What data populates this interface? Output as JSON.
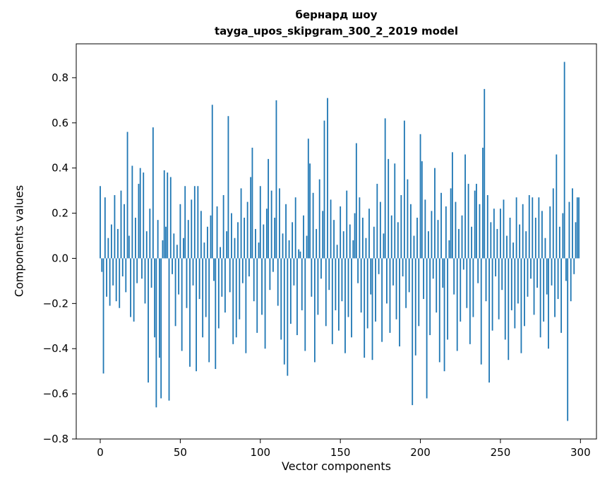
{
  "chart_data": {
    "type": "bar",
    "title_line1": "бернард шоу",
    "title_line2": "tayga_upos_skipgram_300_2_2019 model",
    "xlabel": "Vector components",
    "ylabel": "Components values",
    "bar_color": "#1f77b4",
    "axis_color": "#000000",
    "xlim": [
      -15,
      310
    ],
    "ylim": [
      -0.8,
      0.95
    ],
    "x_start": 0,
    "x_ticks": [
      0,
      50,
      100,
      150,
      200,
      250,
      300
    ],
    "x_tick_labels": [
      "0",
      "50",
      "100",
      "150",
      "200",
      "250",
      "300"
    ],
    "y_ticks": [
      -0.8,
      -0.6,
      -0.4,
      -0.2,
      0.0,
      0.2,
      0.4,
      0.6,
      0.8
    ],
    "y_tick_labels": [
      "−0.8",
      "−0.6",
      "−0.4",
      "−0.2",
      "0.0",
      "0.2",
      "0.4",
      "0.6",
      "0.8"
    ],
    "values": [
      0.32,
      -0.06,
      -0.51,
      0.27,
      -0.17,
      0.09,
      -0.21,
      0.15,
      -0.12,
      0.28,
      -0.19,
      0.13,
      -0.22,
      0.3,
      -0.08,
      0.24,
      -0.15,
      0.56,
      0.1,
      -0.26,
      0.41,
      -0.28,
      0.18,
      -0.11,
      0.33,
      0.4,
      -0.09,
      0.38,
      -0.2,
      0.12,
      -0.55,
      0.22,
      -0.13,
      0.58,
      -0.35,
      -0.66,
      0.17,
      -0.44,
      -0.62,
      0.08,
      0.39,
      0.14,
      0.38,
      -0.63,
      0.36,
      -0.07,
      0.11,
      -0.3,
      0.06,
      -0.16,
      0.24,
      -0.41,
      0.09,
      0.32,
      -0.22,
      0.17,
      -0.48,
      0.26,
      -0.12,
      0.32,
      -0.5,
      0.32,
      -0.18,
      0.21,
      -0.35,
      0.07,
      -0.26,
      0.14,
      -0.46,
      0.19,
      0.68,
      -0.1,
      -0.49,
      0.23,
      -0.31,
      0.05,
      -0.17,
      0.28,
      -0.24,
      0.12,
      0.63,
      -0.15,
      0.2,
      -0.38,
      0.09,
      -0.35,
      0.16,
      -0.27,
      0.31,
      -0.11,
      0.18,
      -0.42,
      0.25,
      -0.08,
      0.36,
      0.49,
      -0.19,
      0.13,
      -0.33,
      0.07,
      0.32,
      -0.25,
      0.15,
      -0.4,
      0.22,
      0.44,
      -0.14,
      0.3,
      -0.06,
      0.18,
      0.7,
      -0.21,
      0.31,
      -0.36,
      0.11,
      -0.47,
      0.24,
      -0.52,
      0.08,
      -0.29,
      0.16,
      -0.12,
      0.27,
      -0.34,
      0.04,
      0.03,
      -0.23,
      0.19,
      -0.41,
      0.1,
      0.53,
      0.42,
      -0.17,
      0.29,
      -0.46,
      0.13,
      -0.25,
      0.35,
      -0.09,
      0.21,
      0.61,
      -0.3,
      0.71,
      -0.14,
      0.26,
      -0.38,
      0.17,
      -0.23,
      0.06,
      -0.32,
      0.23,
      -0.19,
      0.12,
      -0.42,
      0.3,
      -0.26,
      0.15,
      -0.35,
      0.08,
      0.2,
      0.51,
      -0.11,
      0.27,
      -0.24,
      0.18,
      -0.44,
      0.09,
      -0.31,
      0.22,
      -0.16,
      -0.45,
      0.14,
      -0.28,
      0.33,
      -0.07,
      0.25,
      -0.37,
      0.11,
      0.62,
      -0.2,
      0.44,
      -0.33,
      0.19,
      -0.12,
      0.42,
      -0.27,
      0.16,
      -0.39,
      0.28,
      -0.08,
      0.61,
      -0.22,
      0.35,
      -0.15,
      0.24,
      -0.65,
      0.1,
      -0.43,
      0.18,
      -0.3,
      0.55,
      0.43,
      -0.18,
      0.26,
      -0.62,
      0.12,
      -0.34,
      0.21,
      -0.09,
      0.4,
      -0.24,
      0.17,
      -0.46,
      0.29,
      -0.13,
      -0.5,
      0.23,
      -0.36,
      0.08,
      0.31,
      0.47,
      -0.16,
      0.25,
      -0.41,
      0.13,
      -0.28,
      0.19,
      -0.05,
      0.46,
      -0.22,
      0.33,
      -0.38,
      0.14,
      -0.26,
      0.3,
      0.33,
      -0.11,
      0.24,
      -0.47,
      0.49,
      0.75,
      -0.19,
      0.28,
      -0.55,
      0.16,
      -0.32,
      0.22,
      -0.08,
      0.13,
      -0.27,
      0.22,
      -0.14,
      0.26,
      -0.36,
      0.1,
      -0.45,
      0.18,
      -0.23,
      0.07,
      -0.31,
      0.27,
      -0.2,
      0.15,
      -0.42,
      0.24,
      -0.3,
      0.12,
      -0.17,
      0.28,
      -0.09,
      0.27,
      -0.25,
      0.18,
      -0.13,
      0.27,
      -0.35,
      0.21,
      -0.28,
      0.09,
      -0.16,
      -0.4,
      0.23,
      -0.12,
      0.31,
      -0.26,
      0.46,
      -0.18,
      0.14,
      -0.33,
      0.2,
      0.87,
      -0.1,
      -0.72,
      0.25,
      -0.19,
      0.31,
      -0.07,
      0.16,
      0.27,
      0.27
    ]
  }
}
